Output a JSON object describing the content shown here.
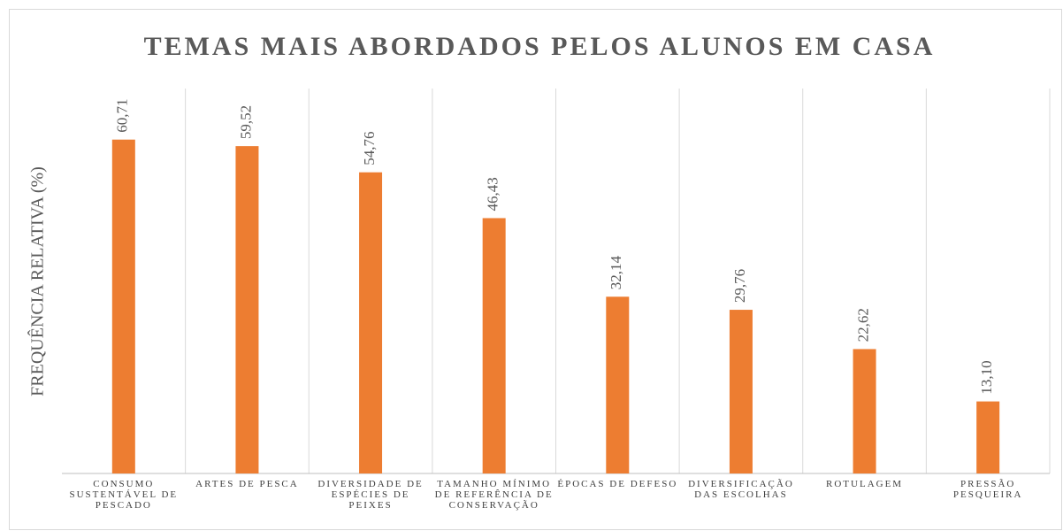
{
  "chart_data": {
    "type": "bar",
    "title": "TEMAS MAIS ABORDADOS PELOS ALUNOS EM CASA",
    "y_label": "FREQUÊNCIA RELATIVA (%)",
    "categories": [
      "CONSUMO SUSTENTÁVEL DE PESCADO",
      "ARTES DE PESCA",
      "DIVERSIDADE DE ESPÉCIES DE PEIXES",
      "TAMANHO MÍNIMO DE REFERÊNCIA DE CONSERVAÇÃO",
      "ÉPOCAS DE DEFESO",
      "DIVERSIFICAÇÃO DAS ESCOLHAS",
      "ROTULAGEM",
      "PRESSÃO PESQUEIRA"
    ],
    "values": [
      60.71,
      59.52,
      54.76,
      46.43,
      32.14,
      29.76,
      22.62,
      13.1
    ],
    "value_labels": [
      "60,71",
      "59,52",
      "54,76",
      "46,43",
      "32,14",
      "29,76",
      "22,62",
      "13,10"
    ],
    "color": "#ed7d31",
    "ylim": [
      0,
      70
    ]
  }
}
